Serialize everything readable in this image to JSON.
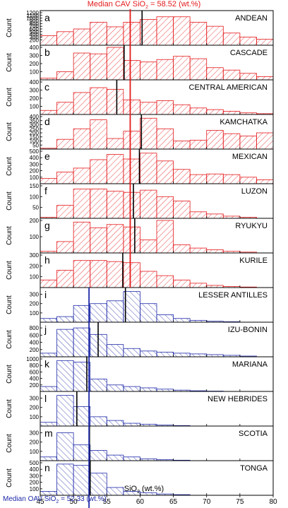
{
  "header": {
    "median_cav_prefix": "Median CAV SiO",
    "median_cav_sub": "2",
    "median_cav_suffix": " = 58.52 (wt.%)"
  },
  "footer": {
    "median_oav_prefix": "Median OAV SiO",
    "median_oav_sub": "2",
    "median_oav_suffix": " = 52.33 (wt.%)"
  },
  "x_axis": {
    "label_prefix": "SiO",
    "label_sub": "2",
    "label_suffix": " (wt.%)",
    "ticks": [
      45,
      50,
      55,
      60,
      65,
      70,
      75,
      80
    ]
  },
  "colors": {
    "cav": "#e41a1c",
    "oav": "#1f2aa8",
    "median_line": "#000000"
  },
  "chart_data": {
    "type": "bar",
    "xlim": [
      45,
      80
    ],
    "bin_width": 2.5,
    "bin_edges": [
      45,
      47.5,
      50,
      52.5,
      55,
      57.5,
      60,
      62.5,
      65,
      67.5,
      70,
      72.5,
      75,
      77.5,
      80
    ],
    "ylabel": "Count",
    "median_cav_sio2": 58.52,
    "median_oav_sio2": 52.33,
    "panels": [
      {
        "letter": "a",
        "name": "ANDEAN",
        "group": "cav",
        "ymax": 1200,
        "ticks": [
          200,
          300,
          400,
          500,
          600,
          700,
          800,
          900,
          1000,
          1100,
          1200
        ],
        "tick_labels": [
          "200",
          "300",
          "400",
          "500",
          "600",
          "700",
          "800",
          "900",
          "1000",
          "1100",
          "1200"
        ],
        "median": 60.3,
        "values": [
          350,
          500,
          600,
          850,
          680,
          850,
          950,
          1050,
          1050,
          850,
          700,
          450,
          300,
          220
        ]
      },
      {
        "letter": "b",
        "name": "CASCADE",
        "group": "cav",
        "ymax": 400,
        "ticks": [
          100,
          200,
          300,
          400
        ],
        "tick_labels": [
          "100",
          "200",
          "300",
          "400"
        ],
        "median": 57.6,
        "values": [
          20,
          100,
          330,
          320,
          400,
          240,
          220,
          250,
          290,
          260,
          150,
          120,
          80,
          40
        ]
      },
      {
        "letter": "c",
        "name": "CENTRAL AMERICAN",
        "group": "cav",
        "ymax": 400,
        "ticks": [
          100,
          200,
          300,
          400
        ],
        "tick_labels": [
          "100",
          "200",
          "300",
          "400"
        ],
        "median": 56.5,
        "values": [
          50,
          150,
          270,
          330,
          310,
          180,
          150,
          170,
          120,
          80,
          60,
          40,
          20,
          10
        ]
      },
      {
        "letter": "d",
        "name": "KAMCHATKA",
        "group": "cav",
        "ymax": 400,
        "ticks": [
          50,
          100,
          150,
          200,
          250,
          300,
          350,
          400
        ],
        "tick_labels": [
          "50",
          "100",
          "150",
          "200",
          "250",
          "300",
          "350",
          "400"
        ],
        "median": 60.2,
        "values": [
          10,
          120,
          250,
          360,
          130,
          220,
          380,
          250,
          100,
          110,
          230,
          190,
          160,
          200
        ]
      },
      {
        "letter": "e",
        "name": "MEXICAN",
        "group": "cav",
        "ymax": 500,
        "ticks": [
          100,
          200,
          300,
          400,
          500
        ],
        "tick_labels": [
          "100",
          "200",
          "300",
          "400",
          "500"
        ],
        "median": 59.9,
        "values": [
          80,
          180,
          240,
          370,
          450,
          380,
          470,
          350,
          220,
          140,
          150,
          140,
          100,
          60
        ]
      },
      {
        "letter": "f",
        "name": "LUZON",
        "group": "cav",
        "ymax": 150,
        "ticks": [
          50,
          100,
          150
        ],
        "tick_labels": [
          "50",
          "100",
          "150"
        ],
        "median": 59.0,
        "values": [
          5,
          60,
          135,
          135,
          125,
          120,
          130,
          100,
          80,
          30,
          20,
          10,
          5,
          0
        ]
      },
      {
        "letter": "g",
        "name": "RYUKYU",
        "group": "cav",
        "ymax": 200,
        "ticks": [
          100,
          200
        ],
        "tick_labels": [
          "100",
          "200"
        ],
        "median": 59.2,
        "values": [
          10,
          70,
          190,
          155,
          175,
          160,
          80,
          200,
          50,
          30,
          20,
          10,
          5,
          0
        ]
      },
      {
        "letter": "h",
        "name": "KURILE",
        "group": "cav",
        "ymax": 300,
        "ticks": [
          100,
          200,
          300
        ],
        "tick_labels": [
          "100",
          "200",
          "300"
        ],
        "median": 57.4,
        "values": [
          70,
          160,
          250,
          250,
          240,
          230,
          150,
          110,
          70,
          40,
          20,
          10,
          5,
          0
        ]
      },
      {
        "letter": "i",
        "name": "LESSER ANTILLES",
        "group": "oav",
        "ymax": 350,
        "ticks": [
          100,
          200,
          300
        ],
        "tick_labels": [
          "100",
          "200",
          "300"
        ],
        "median": 57.8,
        "values": [
          40,
          60,
          180,
          200,
          230,
          330,
          200,
          80,
          40,
          20,
          10,
          5,
          0,
          0
        ]
      },
      {
        "letter": "j",
        "name": "IZU-BONIN",
        "group": "oav",
        "ymax": 900,
        "ticks": [
          200,
          400,
          600,
          800
        ],
        "tick_labels": [
          "200",
          "400",
          "600",
          "800"
        ],
        "median": 53.7,
        "values": [
          100,
          760,
          800,
          620,
          340,
          230,
          160,
          130,
          100,
          80,
          60,
          40,
          20,
          0
        ]
      },
      {
        "letter": "k",
        "name": "MARIANA",
        "group": "oav",
        "ymax": 1000,
        "ticks": [
          200,
          400,
          600,
          800,
          1000
        ],
        "tick_labels": [
          "200",
          "400",
          "600",
          "800",
          "1000"
        ],
        "median": 52.0,
        "values": [
          150,
          950,
          900,
          380,
          200,
          150,
          110,
          70,
          40,
          20,
          10,
          0,
          0,
          0
        ]
      },
      {
        "letter": "l",
        "name": "NEW HEBRIDES",
        "group": "oav",
        "ymax": 350,
        "ticks": [
          100,
          200,
          300
        ],
        "tick_labels": [
          "100",
          "200",
          "300"
        ],
        "median": 50.5,
        "values": [
          40,
          330,
          210,
          100,
          60,
          30,
          20,
          10,
          5,
          0,
          0,
          0,
          0,
          0
        ]
      },
      {
        "letter": "m",
        "name": "SCOTIA",
        "group": "oav",
        "ymax": 350,
        "ticks": [
          100,
          200,
          300
        ],
        "tick_labels": [
          "100",
          "200",
          "300"
        ],
        "median": 52.4,
        "values": [
          40,
          300,
          170,
          110,
          60,
          40,
          20,
          10,
          5,
          0,
          0,
          0,
          0,
          0
        ]
      },
      {
        "letter": "n",
        "name": "TONGA",
        "group": "oav",
        "ymax": 500,
        "ticks": [
          100,
          200,
          300,
          400,
          500
        ],
        "tick_labels": [
          "100",
          "200",
          "300",
          "400",
          "500"
        ],
        "median": 52.5,
        "values": [
          60,
          480,
          460,
          340,
          120,
          60,
          40,
          20,
          10,
          0,
          0,
          0,
          0,
          0
        ]
      }
    ]
  }
}
